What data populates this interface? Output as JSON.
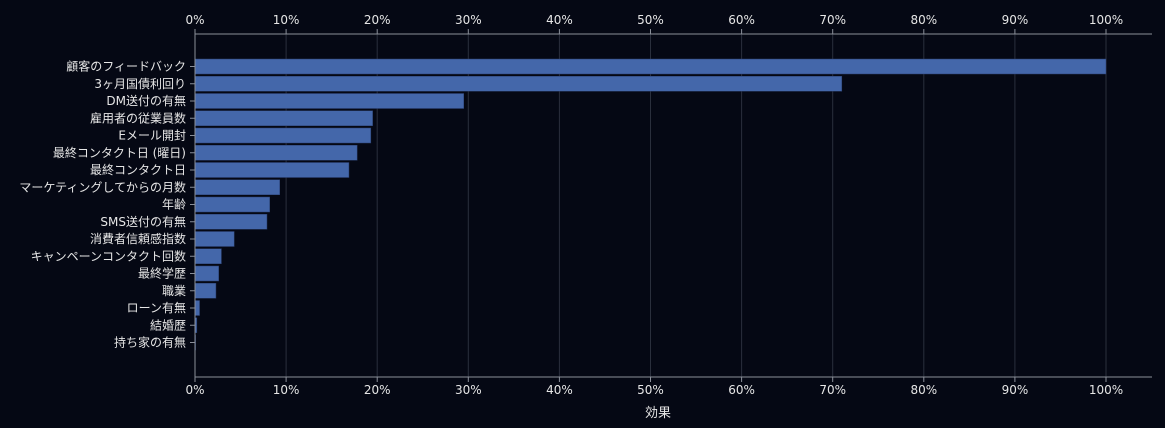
{
  "chart_data": {
    "type": "bar",
    "orientation": "horizontal",
    "xlabel": "効果",
    "xlim": [
      0,
      100
    ],
    "xticks": [
      "0%",
      "10%",
      "20%",
      "30%",
      "40%",
      "50%",
      "60%",
      "70%",
      "80%",
      "90%",
      "100%"
    ],
    "grid": true,
    "bar_color": "#4467aa",
    "categories": [
      "顧客のフィードバック",
      "3ヶ月国債利回り",
      "DM送付の有無",
      "雇用者の従業員数",
      "Eメール開封",
      "最終コンタクト日 (曜日)",
      "最終コンタクト日",
      "マーケティングしてからの月数",
      "年齢",
      "SMS送付の有無",
      "消費者信頼感指数",
      "キャンペーンコンタクト回数",
      "最終学歴",
      "職業",
      "ローン有無",
      "結婚歴",
      "持ち家の有無"
    ],
    "values": [
      100,
      71,
      29.5,
      19.5,
      19.3,
      17.8,
      16.9,
      9.3,
      8.2,
      7.9,
      4.3,
      2.9,
      2.6,
      2.3,
      0.5,
      0.2,
      0.05
    ]
  }
}
